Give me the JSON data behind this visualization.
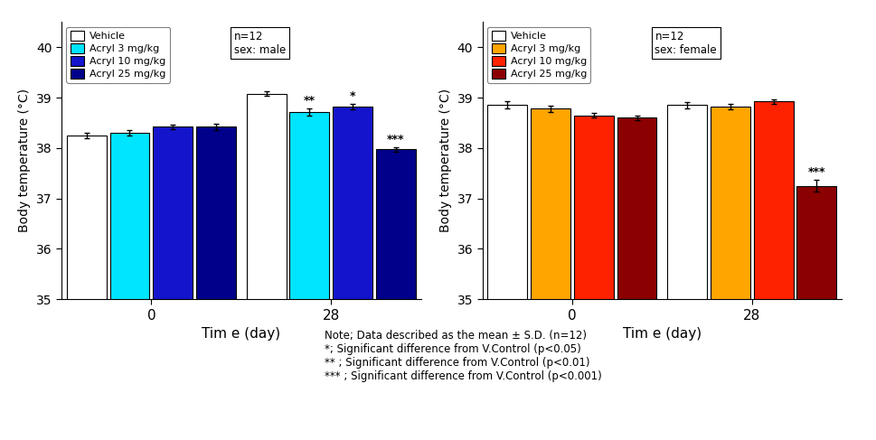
{
  "male": {
    "day0": {
      "Vehicle": 38.25,
      "Acryl3": 38.3,
      "Acryl10": 38.42,
      "Acryl25": 38.42
    },
    "day28": {
      "Vehicle": 39.08,
      "Acryl3": 38.72,
      "Acryl10": 38.82,
      "Acryl25": 37.97
    },
    "day0_err": {
      "Vehicle": 0.05,
      "Acryl3": 0.05,
      "Acryl10": 0.05,
      "Acryl25": 0.06
    },
    "day28_err": {
      "Vehicle": 0.05,
      "Acryl3": 0.07,
      "Acryl10": 0.05,
      "Acryl25": 0.04
    },
    "colors": [
      "white",
      "#00E5FF",
      "#1414CC",
      "#00008B"
    ],
    "sig_day28": {
      "Vehicle": "",
      "Acryl3": "**",
      "Acryl10": "*",
      "Acryl25": "***"
    },
    "annotation": "n=12\nsex: male"
  },
  "female": {
    "day0": {
      "Vehicle": 38.85,
      "Acryl3": 38.78,
      "Acryl10": 38.65,
      "Acryl25": 38.6
    },
    "day28": {
      "Vehicle": 38.85,
      "Acryl3": 38.82,
      "Acryl10": 38.92,
      "Acryl25": 37.25
    },
    "day0_err": {
      "Vehicle": 0.07,
      "Acryl3": 0.06,
      "Acryl10": 0.05,
      "Acryl25": 0.05
    },
    "day28_err": {
      "Vehicle": 0.06,
      "Acryl3": 0.06,
      "Acryl10": 0.05,
      "Acryl25": 0.12
    },
    "colors": [
      "white",
      "#FFA500",
      "#FF2200",
      "#8B0000"
    ],
    "sig_day28": {
      "Vehicle": "",
      "Acryl3": "",
      "Acryl10": "",
      "Acryl25": "***"
    },
    "annotation": "n=12\nsex: female"
  },
  "legend_labels": [
    "Vehicle",
    "Acryl 3 mg/kg",
    "Acryl 10 mg/kg",
    "Acryl 25 mg/kg"
  ],
  "ylabel": "Body temperature (°C)",
  "xlabel": "Tim e (day)",
  "ylim": [
    35,
    40.5
  ],
  "yticks": [
    35,
    36,
    37,
    38,
    39,
    40
  ],
  "group_labels": [
    "0",
    "28"
  ],
  "note_text": "Note; Data described as the mean ± S.D. (n=12)\n*; Significant difference from V.Control (p<0.05)\n** ; Significant difference from V.Control (p<0.01)\n*** ; Significant difference from V.Control (p<0.001)",
  "bar_width": 0.12,
  "group_centers": [
    0.25,
    0.75
  ],
  "xlim": [
    0.0,
    1.0
  ]
}
